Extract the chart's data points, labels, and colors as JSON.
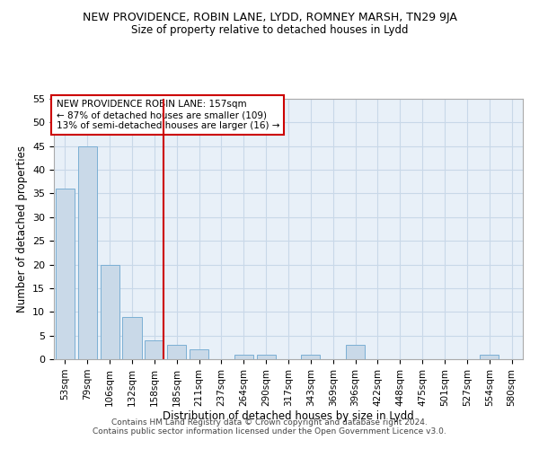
{
  "title": "NEW PROVIDENCE, ROBIN LANE, LYDD, ROMNEY MARSH, TN29 9JA",
  "subtitle": "Size of property relative to detached houses in Lydd",
  "xlabel": "Distribution of detached houses by size in Lydd",
  "ylabel": "Number of detached properties",
  "footer": "Contains HM Land Registry data © Crown copyright and database right 2024.\nContains public sector information licensed under the Open Government Licence v3.0.",
  "categories": [
    "53sqm",
    "79sqm",
    "106sqm",
    "132sqm",
    "158sqm",
    "185sqm",
    "211sqm",
    "237sqm",
    "264sqm",
    "290sqm",
    "317sqm",
    "343sqm",
    "369sqm",
    "396sqm",
    "422sqm",
    "448sqm",
    "475sqm",
    "501sqm",
    "527sqm",
    "554sqm",
    "580sqm"
  ],
  "values": [
    36,
    45,
    20,
    9,
    4,
    3,
    2,
    0,
    1,
    1,
    0,
    1,
    0,
    3,
    0,
    0,
    0,
    0,
    0,
    1,
    0
  ],
  "bar_color": "#c9d9e8",
  "bar_edge_color": "#7bafd4",
  "grid_color": "#c8d8e8",
  "background_color": "#e8f0f8",
  "vline_color": "#cc0000",
  "annotation_text": "NEW PROVIDENCE ROBIN LANE: 157sqm\n← 87% of detached houses are smaller (109)\n13% of semi-detached houses are larger (16) →",
  "annotation_box_color": "#ffffff",
  "annotation_box_edge": "#cc0000",
  "ylim": [
    0,
    55
  ],
  "yticks": [
    0,
    5,
    10,
    15,
    20,
    25,
    30,
    35,
    40,
    45,
    50,
    55
  ],
  "property_index": 4
}
